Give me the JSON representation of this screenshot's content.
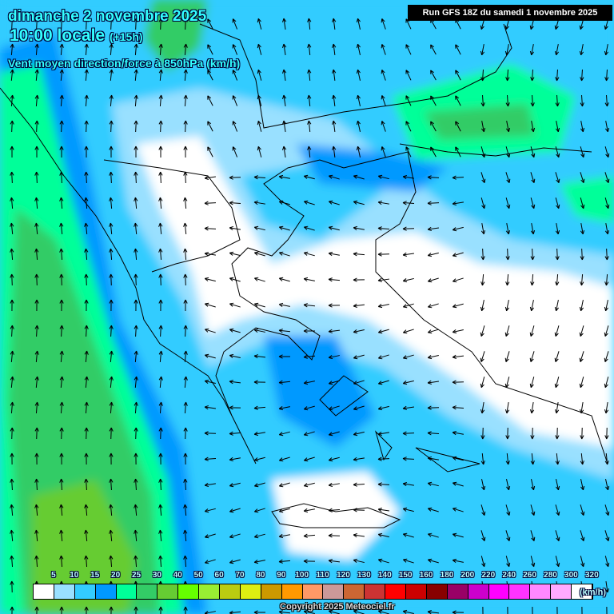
{
  "header": {
    "date": "dimanche 2 novembre 2025",
    "time": "10:00 locale",
    "offset": "(+15h)",
    "parameter": "Vent moyen direction/force à 850hPa (km/h)",
    "run": "Run GFS 18Z du samedi 1 novembre 2025"
  },
  "legend": {
    "labels": [
      "5",
      "10",
      "15",
      "20",
      "25",
      "30",
      "40",
      "50",
      "60",
      "70",
      "80",
      "90",
      "100",
      "110",
      "120",
      "130",
      "140",
      "150",
      "160",
      "180",
      "200",
      "220",
      "240",
      "260",
      "280",
      "300",
      "320"
    ],
    "colors": [
      "#ffffff",
      "#99e0ff",
      "#33ccff",
      "#0099ff",
      "#00ff99",
      "#33cc66",
      "#66cc33",
      "#66ff00",
      "#99ee33",
      "#bbcc11",
      "#ddee11",
      "#cc9900",
      "#ff9900",
      "#ff9966",
      "#cc9999",
      "#cc6633",
      "#cc3333",
      "#ff0000",
      "#cc0000",
      "#880000",
      "#990066",
      "#cc00cc",
      "#ff00ff",
      "#ff33ff",
      "#ff88ff",
      "#ffaaff",
      "#ffffff"
    ],
    "unit": "(km/h)"
  },
  "copyright": "Copyright 2025 Meteociel.fr"
}
